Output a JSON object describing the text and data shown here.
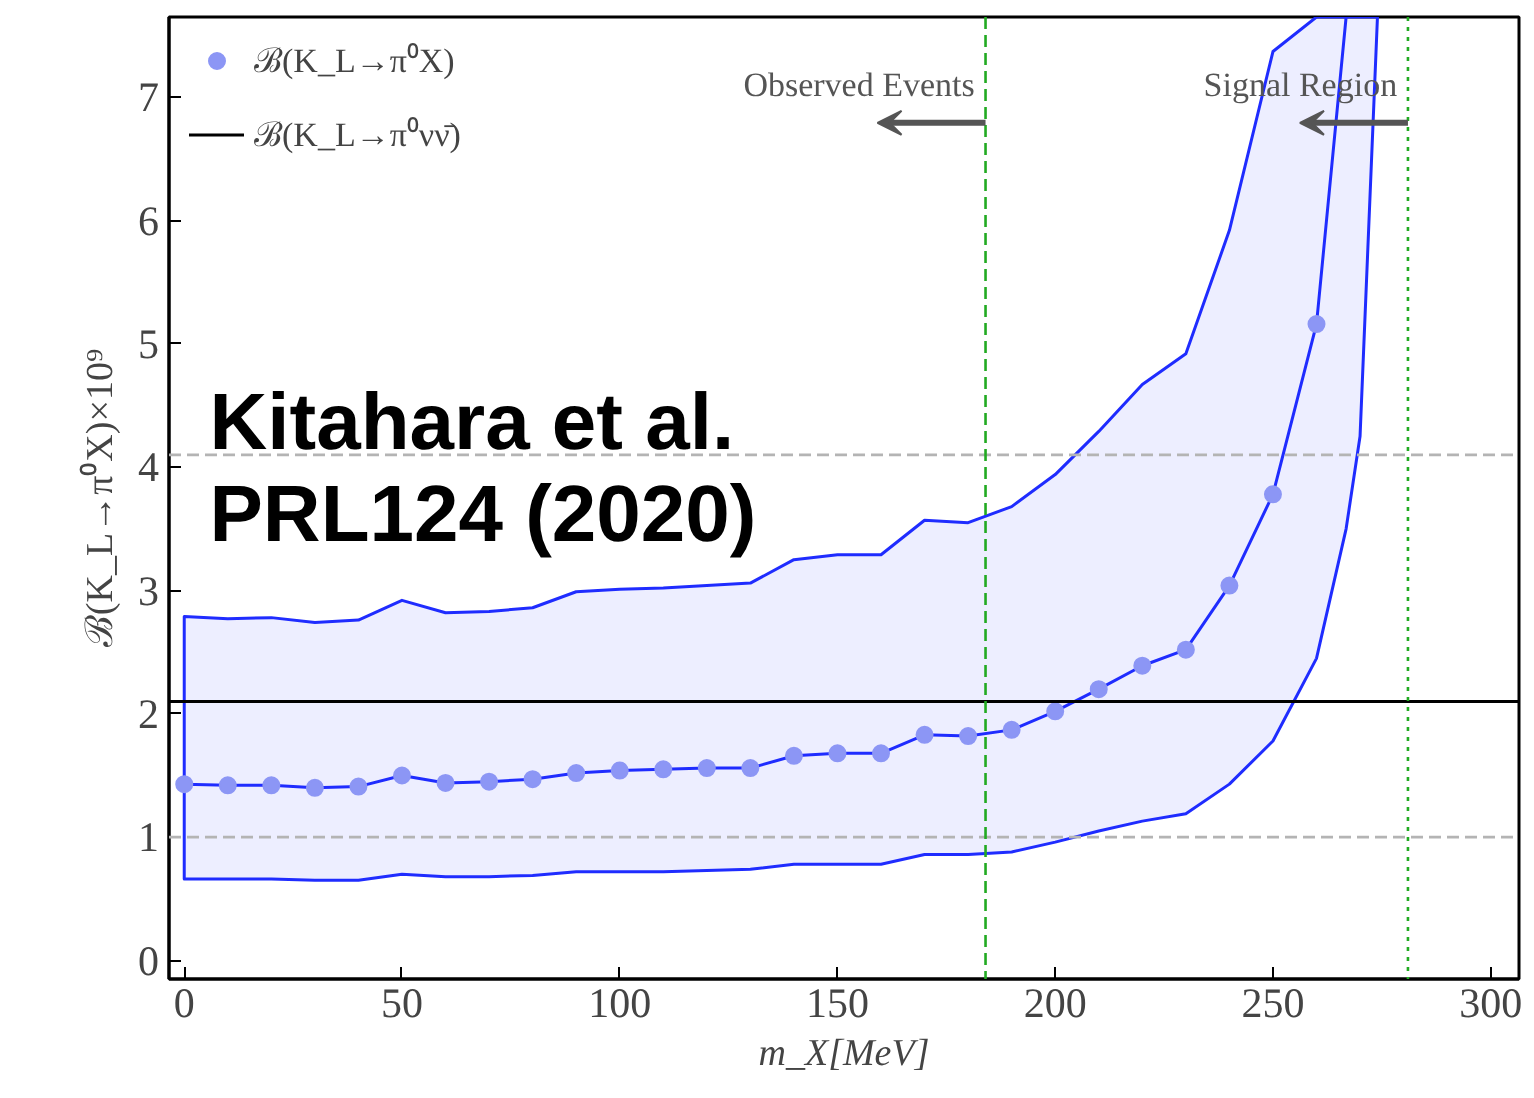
{
  "chart_data": {
    "type": "line",
    "xlabel": "m_X[MeV]",
    "ylabel": "ℬ(K_L→π⁰X)×10⁹",
    "xlim": [
      -3.5,
      306.5
    ],
    "ylim": [
      -0.15,
      7.65
    ],
    "xticks": [
      0,
      50,
      100,
      150,
      200,
      250,
      300
    ],
    "yticks": [
      0,
      1,
      2,
      3,
      4,
      5,
      6,
      7
    ],
    "grid": false,
    "legend": "top left",
    "series": [
      {
        "color": "#1f2cff",
        "x": [
          0,
          10,
          20,
          30,
          40,
          50,
          60,
          70,
          80,
          90,
          100,
          110,
          120,
          130,
          140,
          150,
          160,
          170,
          180,
          190,
          200,
          210,
          220,
          230,
          240,
          250,
          260,
          266.8,
          270,
          274
        ],
        "values": [
          1.43,
          1.42,
          1.42,
          1.4,
          1.41,
          1.5,
          1.44,
          1.45,
          1.47,
          1.52,
          1.54,
          1.55,
          1.56,
          1.56,
          1.66,
          1.68,
          1.68,
          1.83,
          1.82,
          1.87,
          2.02,
          2.2,
          2.39,
          2.52,
          3.04,
          3.78,
          5.16,
          7.65,
          null,
          null
        ],
        "upper": [
          2.79,
          2.77,
          2.78,
          2.74,
          2.76,
          2.92,
          2.82,
          2.83,
          2.86,
          2.99,
          3.01,
          3.02,
          3.04,
          3.06,
          3.25,
          3.29,
          3.29,
          3.57,
          3.55,
          3.68,
          3.94,
          4.29,
          4.67,
          4.92,
          5.92,
          7.37,
          7.65,
          7.65,
          7.65,
          7.65
        ],
        "lower": [
          0.66,
          0.66,
          0.66,
          0.65,
          0.65,
          0.7,
          0.68,
          0.68,
          0.69,
          0.72,
          0.72,
          0.72,
          0.73,
          0.74,
          0.78,
          0.78,
          0.78,
          0.86,
          0.86,
          0.88,
          0.96,
          1.05,
          1.13,
          1.19,
          1.43,
          1.78,
          2.45,
          3.5,
          4.25,
          7.65
        ]
      },
      {
        "type": "scatter",
        "name": "ℬ(K_L→π⁰X)",
        "color": "#8c96f5",
        "marker": "circle",
        "x": [
          0,
          10,
          20,
          30,
          40,
          50,
          60,
          70,
          80,
          90,
          100,
          110,
          120,
          130,
          140,
          150,
          160,
          170,
          180,
          190,
          200,
          210,
          220,
          230,
          240,
          250,
          260
        ],
        "values": [
          1.43,
          1.42,
          1.42,
          1.4,
          1.41,
          1.5,
          1.44,
          1.45,
          1.47,
          1.52,
          1.54,
          1.55,
          1.56,
          1.56,
          1.66,
          1.68,
          1.68,
          1.83,
          1.82,
          1.87,
          2.02,
          2.2,
          2.39,
          2.52,
          3.04,
          3.78,
          5.16
        ]
      },
      {
        "name": "ℬ(K_L→π⁰νν̄)",
        "color": "#000000",
        "x": [
          -3.5,
          306.5
        ],
        "values": [
          2.1,
          2.1
        ]
      }
    ],
    "ref_lines": [
      {
        "axis": "y",
        "value": 1.0,
        "color": "#b4b4b4",
        "line_style": "dashed"
      },
      {
        "axis": "y",
        "value": 4.1,
        "color": "#b4b4b4",
        "line_style": "dashed"
      },
      {
        "axis": "x",
        "value": 184,
        "label": "Observed Events",
        "color": "#22aa22",
        "line_style": "dashed"
      },
      {
        "axis": "x",
        "value": 281,
        "label": "Signal Region",
        "color": "#22aa22",
        "line_style": "dotted"
      }
    ],
    "annotations": [
      "Kitahara et al.\nPRL124 (2020)"
    ]
  }
}
